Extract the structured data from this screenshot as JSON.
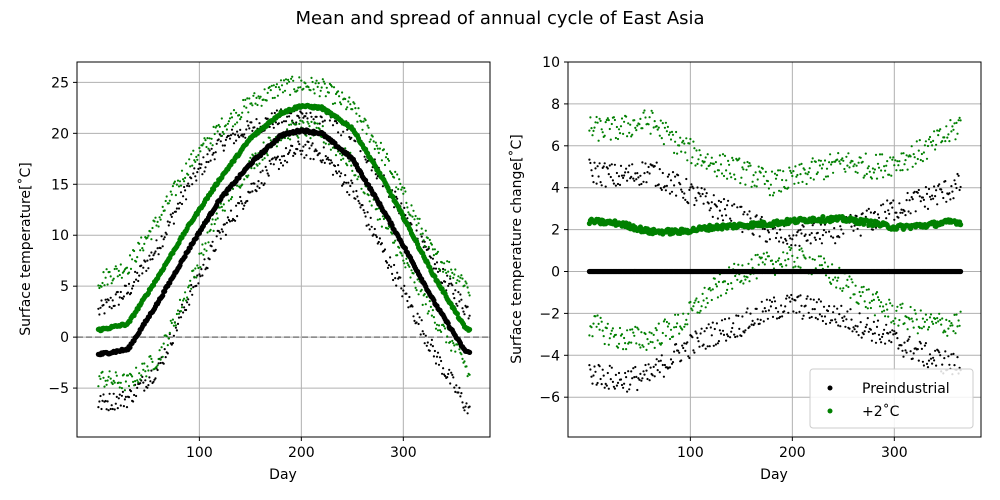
{
  "figure": {
    "suptitle": "Mean and spread of annual cycle of East Asia"
  },
  "colors": {
    "preindustrial": "#000000",
    "warming": "#008000",
    "zero_line": "#808080",
    "grid": "#b0b0b0"
  },
  "chart_data": [
    {
      "type": "scatter",
      "panel": "left",
      "title": "",
      "xlabel": "Day",
      "ylabel": "Surface temperature[˚C]",
      "xlim": [
        -20,
        385
      ],
      "ylim": [
        -9.8,
        27
      ],
      "x_ticks": [
        100,
        200,
        300
      ],
      "y_ticks": [
        -5,
        0,
        5,
        10,
        15,
        20,
        25
      ],
      "grid": true,
      "reference_line": {
        "y": 0,
        "style": "dashed",
        "color": "gray"
      },
      "series": [
        {
          "group": "Preindustrial",
          "role": "mean",
          "marker_size": "large",
          "x": [
            1,
            30,
            60,
            90,
            120,
            150,
            180,
            200,
            220,
            250,
            280,
            300,
            330,
            360,
            365
          ],
          "y": [
            -1.7,
            -1.2,
            3.5,
            8.7,
            13.5,
            17.0,
            19.8,
            20.3,
            20.0,
            17.5,
            12.5,
            9.0,
            3.5,
            -1.3,
            -1.5
          ]
        },
        {
          "group": "Preindustrial",
          "role": "upper",
          "marker_size": "small",
          "x": [
            1,
            30,
            60,
            90,
            120,
            150,
            180,
            200,
            220,
            250,
            280,
            300,
            330,
            360,
            365
          ],
          "y": [
            2.5,
            4.5,
            9.0,
            15.0,
            19.0,
            20.5,
            21.5,
            21.8,
            21.8,
            20.0,
            15.5,
            12.0,
            7.0,
            3.0,
            2.5
          ]
        },
        {
          "group": "Preindustrial",
          "role": "lower",
          "marker_size": "small",
          "x": [
            1,
            30,
            60,
            90,
            120,
            150,
            180,
            200,
            220,
            250,
            280,
            300,
            330,
            360,
            365
          ],
          "y": [
            -6.5,
            -6.0,
            -3.0,
            4.0,
            10.0,
            14.5,
            17.5,
            18.5,
            18.0,
            14.5,
            8.5,
            4.5,
            -1.5,
            -6.5,
            -7.5
          ]
        },
        {
          "group": "+2˚C",
          "role": "mean",
          "marker_size": "large",
          "x": [
            1,
            30,
            60,
            90,
            120,
            150,
            180,
            200,
            220,
            250,
            280,
            300,
            330,
            360,
            365
          ],
          "y": [
            0.7,
            1.3,
            6.0,
            11.0,
            15.5,
            19.5,
            22.0,
            22.7,
            22.5,
            20.5,
            15.5,
            11.8,
            6.0,
            1.0,
            0.7
          ]
        },
        {
          "group": "+2˚C",
          "role": "upper",
          "marker_size": "small",
          "x": [
            1,
            30,
            60,
            90,
            120,
            150,
            180,
            200,
            220,
            250,
            280,
            300,
            330,
            360,
            365
          ],
          "y": [
            5.5,
            7.0,
            11.5,
            17.0,
            20.5,
            23.0,
            24.5,
            24.8,
            24.5,
            22.5,
            18.0,
            14.0,
            8.0,
            5.5,
            4.5
          ]
        },
        {
          "group": "+2˚C",
          "role": "lower",
          "marker_size": "small",
          "x": [
            1,
            30,
            60,
            90,
            120,
            150,
            180,
            200,
            220,
            250,
            280,
            300,
            330,
            360,
            365
          ],
          "y": [
            -4.0,
            -4.5,
            -2.0,
            5.0,
            12.5,
            17.0,
            20.0,
            20.5,
            20.0,
            17.0,
            11.5,
            7.5,
            2.0,
            -2.5,
            -4.0
          ]
        }
      ]
    },
    {
      "type": "scatter",
      "panel": "right",
      "title": "",
      "xlabel": "Day",
      "ylabel": "Surface temperature change[˚C]",
      "xlim": [
        -20,
        385
      ],
      "ylim": [
        -7.9,
        10
      ],
      "x_ticks": [
        100,
        200,
        300
      ],
      "y_ticks": [
        -6,
        -4,
        -2,
        0,
        2,
        4,
        6,
        8,
        10
      ],
      "grid": true,
      "legend": {
        "position": "lower-right",
        "entries": [
          "Preindustrial",
          "+2˚C"
        ]
      },
      "series": [
        {
          "group": "Preindustrial",
          "role": "mean",
          "marker_size": "large",
          "x": [
            1,
            30,
            60,
            90,
            120,
            150,
            180,
            200,
            220,
            250,
            280,
            300,
            330,
            360,
            365
          ],
          "y": [
            0,
            0,
            0,
            0,
            0,
            0,
            0,
            0,
            0,
            0,
            0,
            0,
            0,
            0,
            0
          ]
        },
        {
          "group": "Preindustrial",
          "role": "upper",
          "marker_size": "small",
          "x": [
            1,
            30,
            60,
            90,
            120,
            150,
            180,
            200,
            220,
            250,
            280,
            300,
            330,
            360,
            365
          ],
          "y": [
            4.8,
            4.5,
            4.8,
            4.0,
            3.2,
            2.5,
            1.8,
            1.7,
            1.8,
            2.0,
            2.5,
            3.0,
            3.5,
            4.0,
            4.2
          ]
        },
        {
          "group": "Preindustrial",
          "role": "lower",
          "marker_size": "small",
          "x": [
            1,
            30,
            60,
            90,
            120,
            150,
            180,
            200,
            220,
            250,
            280,
            300,
            330,
            360,
            365
          ],
          "y": [
            -4.8,
            -5.2,
            -5.0,
            -3.8,
            -3.0,
            -2.5,
            -1.8,
            -1.6,
            -1.8,
            -2.2,
            -2.8,
            -3.3,
            -4.0,
            -4.5,
            -4.5
          ]
        },
        {
          "group": "+2˚C",
          "role": "mean",
          "marker_size": "large",
          "x": [
            1,
            30,
            60,
            90,
            120,
            150,
            180,
            200,
            220,
            250,
            280,
            300,
            330,
            360,
            365
          ],
          "y": [
            2.4,
            2.3,
            1.9,
            1.9,
            2.1,
            2.2,
            2.3,
            2.4,
            2.5,
            2.5,
            2.3,
            2.1,
            2.2,
            2.4,
            2.3
          ]
        },
        {
          "group": "+2˚C",
          "role": "upper",
          "marker_size": "small",
          "x": [
            1,
            30,
            60,
            90,
            120,
            150,
            180,
            200,
            220,
            250,
            280,
            300,
            330,
            360,
            365
          ],
          "y": [
            6.8,
            6.8,
            7.2,
            6.0,
            5.2,
            4.8,
            4.2,
            4.4,
            4.8,
            5.2,
            5.0,
            5.2,
            5.8,
            6.8,
            7.2
          ]
        },
        {
          "group": "+2˚C",
          "role": "lower",
          "marker_size": "small",
          "x": [
            1,
            30,
            60,
            90,
            120,
            150,
            180,
            200,
            220,
            250,
            280,
            300,
            330,
            360,
            365
          ],
          "y": [
            -2.5,
            -3.2,
            -3.2,
            -2.5,
            -1.0,
            0.0,
            0.4,
            0.6,
            0.4,
            -0.5,
            -1.5,
            -2.0,
            -2.5,
            -2.5,
            -2.5
          ]
        }
      ]
    }
  ]
}
